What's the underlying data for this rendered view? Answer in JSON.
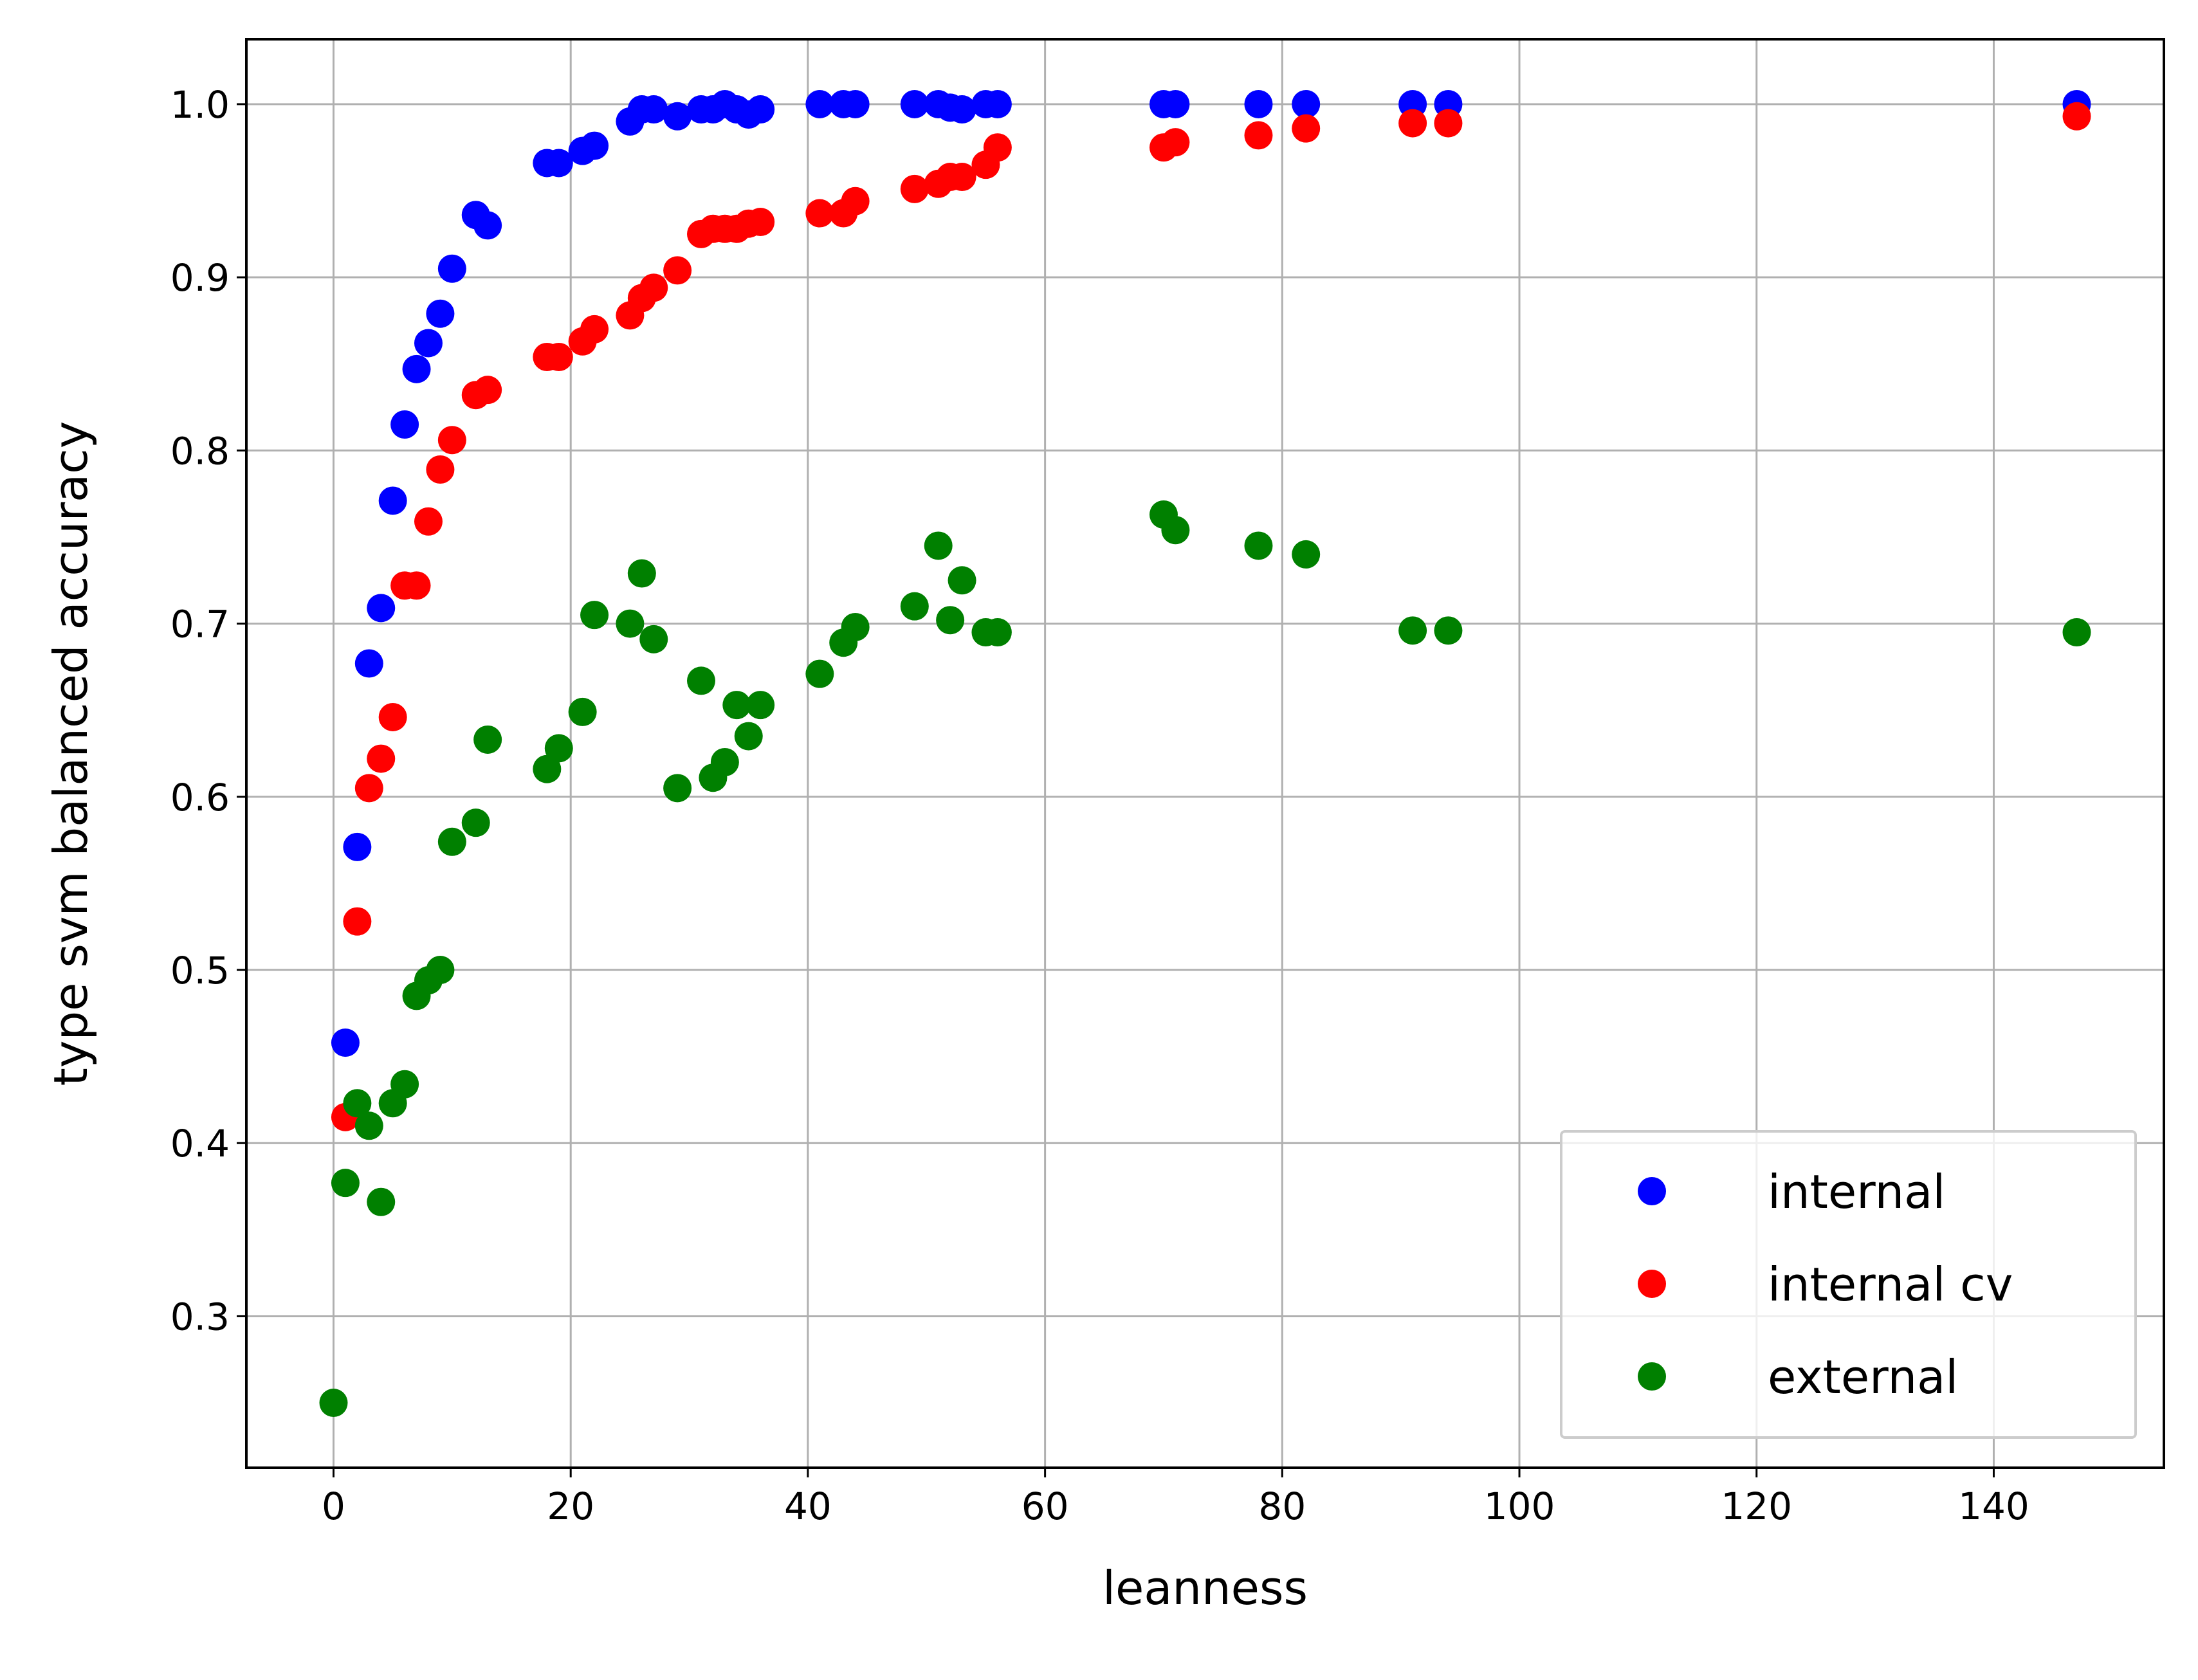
{
  "chart_data": {
    "type": "scatter",
    "xlabel": "leanness",
    "ylabel": "type svm balanced accuracy",
    "xlim": [
      -7.35,
      154.35
    ],
    "ylim": [
      0.2125,
      1.0375
    ],
    "x_ticks": [
      0,
      20,
      40,
      60,
      80,
      100,
      120,
      140
    ],
    "y_ticks": [
      0.3,
      0.4,
      0.5,
      0.6,
      0.7,
      0.8,
      0.9,
      1.0
    ],
    "x_tick_labels": [
      "0",
      "20",
      "40",
      "60",
      "80",
      "100",
      "120",
      "140"
    ],
    "y_tick_labels": [
      "0.3",
      "0.4",
      "0.5",
      "0.6",
      "0.7",
      "0.8",
      "0.9",
      "1.0"
    ],
    "grid": true,
    "legend_position": "lower right",
    "series": [
      {
        "name": "internal",
        "color": "#0000ff",
        "points": [
          [
            1,
            0.458
          ],
          [
            2,
            0.571
          ],
          [
            3,
            0.677
          ],
          [
            4,
            0.709
          ],
          [
            5,
            0.771
          ],
          [
            6,
            0.815
          ],
          [
            7,
            0.847
          ],
          [
            8,
            0.862
          ],
          [
            9,
            0.879
          ],
          [
            10,
            0.905
          ],
          [
            12,
            0.936
          ],
          [
            13,
            0.93
          ],
          [
            18,
            0.966
          ],
          [
            19,
            0.966
          ],
          [
            21,
            0.973
          ],
          [
            22,
            0.976
          ],
          [
            25,
            0.99
          ],
          [
            26,
            0.997
          ],
          [
            27,
            0.997
          ],
          [
            29,
            0.993
          ],
          [
            31,
            0.997
          ],
          [
            32,
            0.997
          ],
          [
            33,
            1.0
          ],
          [
            34,
            0.997
          ],
          [
            35,
            0.994
          ],
          [
            36,
            0.997
          ],
          [
            41,
            1.0
          ],
          [
            43,
            1.0
          ],
          [
            44,
            1.0
          ],
          [
            49,
            1.0
          ],
          [
            51,
            1.0
          ],
          [
            52,
            0.998
          ],
          [
            53,
            0.997
          ],
          [
            55,
            1.0
          ],
          [
            56,
            1.0
          ],
          [
            70,
            1.0
          ],
          [
            71,
            1.0
          ],
          [
            78,
            1.0
          ],
          [
            82,
            1.0
          ],
          [
            91,
            1.0
          ],
          [
            94,
            1.0
          ],
          [
            147,
            1.0
          ]
        ]
      },
      {
        "name": "internal cv",
        "color": "#ff0000",
        "points": [
          [
            1,
            0.415
          ],
          [
            2,
            0.528
          ],
          [
            3,
            0.605
          ],
          [
            4,
            0.622
          ],
          [
            5,
            0.646
          ],
          [
            6,
            0.722
          ],
          [
            7,
            0.722
          ],
          [
            8,
            0.759
          ],
          [
            9,
            0.789
          ],
          [
            10,
            0.806
          ],
          [
            12,
            0.832
          ],
          [
            13,
            0.835
          ],
          [
            18,
            0.854
          ],
          [
            19,
            0.854
          ],
          [
            21,
            0.863
          ],
          [
            22,
            0.87
          ],
          [
            25,
            0.878
          ],
          [
            26,
            0.888
          ],
          [
            27,
            0.894
          ],
          [
            29,
            0.904
          ],
          [
            31,
            0.925
          ],
          [
            32,
            0.928
          ],
          [
            33,
            0.928
          ],
          [
            34,
            0.928
          ],
          [
            35,
            0.931
          ],
          [
            36,
            0.932
          ],
          [
            41,
            0.937
          ],
          [
            43,
            0.937
          ],
          [
            44,
            0.944
          ],
          [
            49,
            0.951
          ],
          [
            51,
            0.954
          ],
          [
            52,
            0.958
          ],
          [
            53,
            0.958
          ],
          [
            55,
            0.965
          ],
          [
            56,
            0.975
          ],
          [
            70,
            0.975
          ],
          [
            71,
            0.978
          ],
          [
            78,
            0.982
          ],
          [
            82,
            0.986
          ],
          [
            91,
            0.989
          ],
          [
            94,
            0.989
          ],
          [
            147,
            0.993
          ]
        ]
      },
      {
        "name": "external",
        "color": "#008000",
        "points": [
          [
            0,
            0.25
          ],
          [
            1,
            0.377
          ],
          [
            2,
            0.423
          ],
          [
            3,
            0.41
          ],
          [
            4,
            0.366
          ],
          [
            5,
            0.423
          ],
          [
            6,
            0.434
          ],
          [
            7,
            0.485
          ],
          [
            8,
            0.494
          ],
          [
            9,
            0.5
          ],
          [
            10,
            0.574
          ],
          [
            12,
            0.585
          ],
          [
            13,
            0.633
          ],
          [
            18,
            0.616
          ],
          [
            19,
            0.628
          ],
          [
            21,
            0.649
          ],
          [
            22,
            0.705
          ],
          [
            25,
            0.7
          ],
          [
            26,
            0.729
          ],
          [
            27,
            0.691
          ],
          [
            29,
            0.605
          ],
          [
            31,
            0.667
          ],
          [
            32,
            0.611
          ],
          [
            33,
            0.62
          ],
          [
            34,
            0.653
          ],
          [
            35,
            0.635
          ],
          [
            36,
            0.653
          ],
          [
            41,
            0.671
          ],
          [
            43,
            0.689
          ],
          [
            44,
            0.698
          ],
          [
            49,
            0.71
          ],
          [
            51,
            0.745
          ],
          [
            52,
            0.702
          ],
          [
            53,
            0.725
          ],
          [
            55,
            0.695
          ],
          [
            56,
            0.695
          ],
          [
            70,
            0.763
          ],
          [
            71,
            0.754
          ],
          [
            78,
            0.745
          ],
          [
            82,
            0.74
          ],
          [
            91,
            0.696
          ],
          [
            94,
            0.696
          ],
          [
            147,
            0.695
          ]
        ]
      }
    ]
  }
}
